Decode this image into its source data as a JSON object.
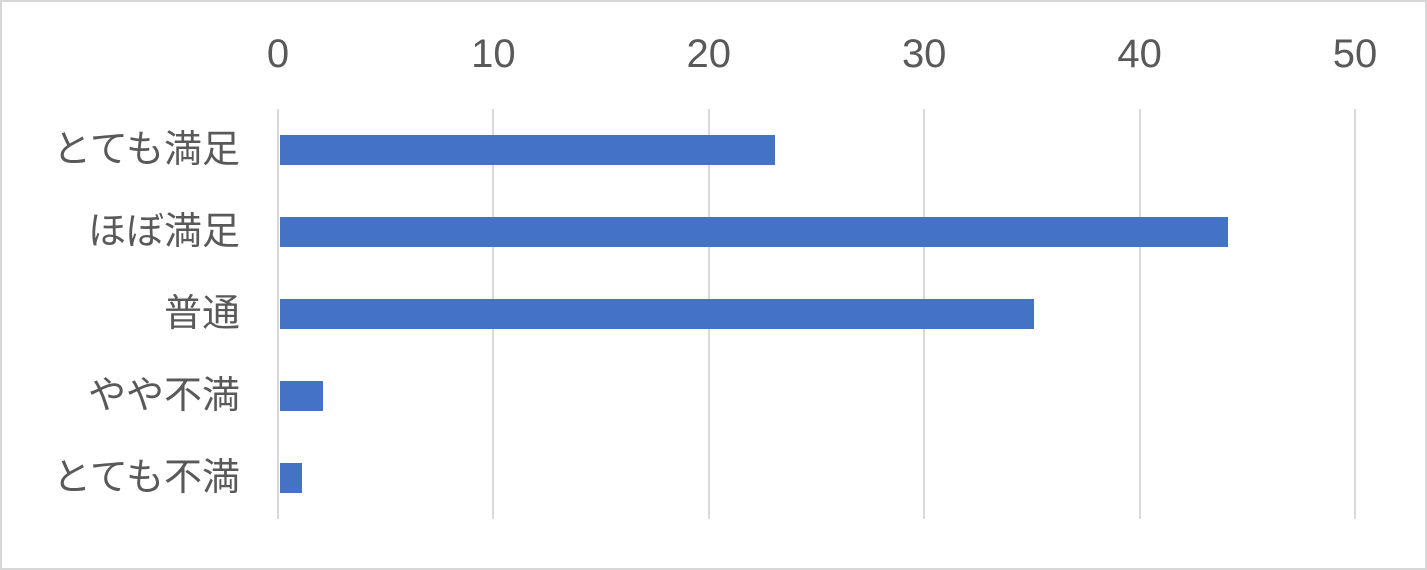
{
  "chart_data": {
    "type": "bar",
    "orientation": "horizontal",
    "title": "",
    "xlabel": "",
    "ylabel": "",
    "categories": [
      "とても満足",
      "ほぼ満足",
      "普通",
      "やや不満",
      "とても不満"
    ],
    "values": [
      23,
      44,
      35,
      2,
      1
    ],
    "xlim": [
      0,
      50
    ],
    "xticks": [
      0,
      10,
      20,
      30,
      40,
      50
    ],
    "xtick_labels": [
      "0",
      "10",
      "20",
      "30",
      "40",
      "50"
    ],
    "grid": true,
    "legend": false,
    "axis_position": "top",
    "colors": {
      "bar": "#4472C4",
      "gridline": "#d9d9d9",
      "axis_text": "#595959",
      "background": "#ffffff",
      "frame_border": "#d7d7d7"
    }
  }
}
